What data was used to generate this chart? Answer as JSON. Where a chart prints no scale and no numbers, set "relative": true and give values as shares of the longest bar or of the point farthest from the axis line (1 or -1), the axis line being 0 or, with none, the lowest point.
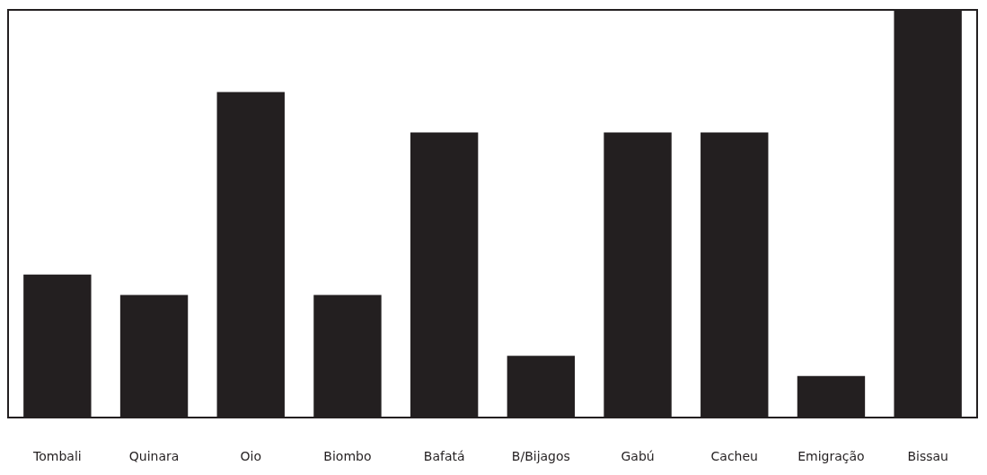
{
  "chart_data": {
    "type": "bar",
    "relative": true,
    "categories": [
      "Tombali",
      "Quinara",
      "Oio",
      "Biombo",
      "Bafatá",
      "B/Bijagos",
      "Gabú",
      "Cacheu",
      "Emigração",
      "Bissau"
    ],
    "values": [
      0.35,
      0.3,
      0.8,
      0.3,
      0.7,
      0.15,
      0.7,
      0.7,
      0.1,
      1.0
    ],
    "color": "#231f20"
  }
}
